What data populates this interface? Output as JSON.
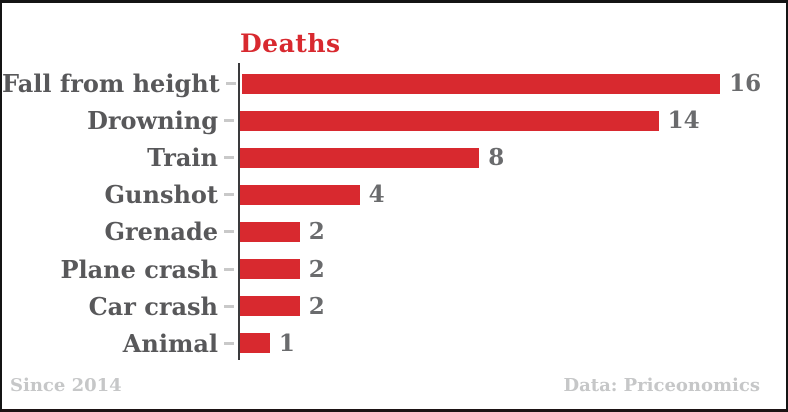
{
  "chart_data": {
    "type": "bar",
    "orientation": "horizontal",
    "title": "Deaths",
    "categories": [
      "Fall from height",
      "Drowning",
      "Train",
      "Gunshot",
      "Grenade",
      "Plane crash",
      "Car crash",
      "Animal"
    ],
    "values": [
      16,
      14,
      8,
      4,
      2,
      2,
      2,
      1
    ],
    "xlim": [
      0,
      16
    ],
    "grid": false,
    "legend": "none",
    "value_labels": "end-of-bar"
  },
  "footer": {
    "left": "Since 2014",
    "right": "Data: Priceonomics"
  },
  "colors": {
    "bar": "#d8292f",
    "title": "#d8292f",
    "category_label": "#58585a",
    "value_label": "#6a6b6d",
    "footer_text": "#c6c7c8",
    "axis_line": "#3a3a3c",
    "tick": "#c9c9c9",
    "background": "#ffffff",
    "border": "#141414"
  }
}
